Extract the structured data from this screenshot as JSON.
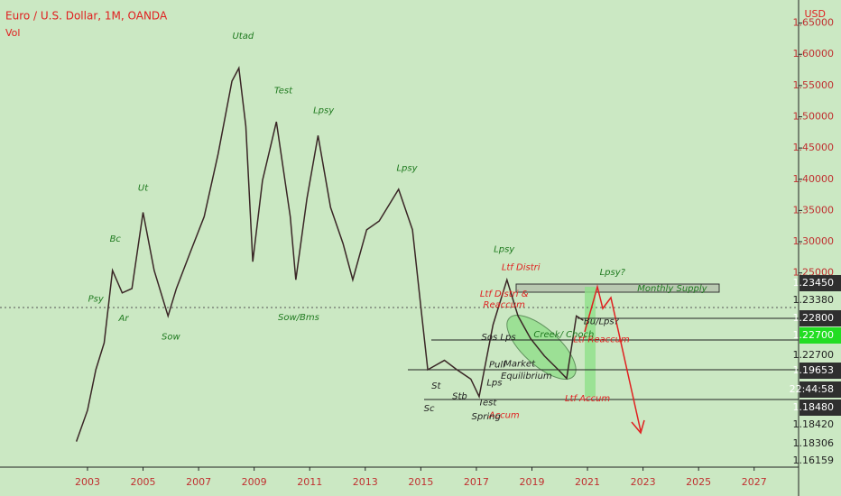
{
  "chart_data": {
    "type": "line",
    "title": "Euro / U.S. Dollar, 1M, OANDA",
    "subtitle": "Vol",
    "y_axis_label": "USD",
    "series": [
      {
        "name": "EURUSD",
        "color": "#3a2626",
        "x": [
          2002.6,
          2003.0,
          2003.3,
          2003.6,
          2003.9,
          2004.25,
          2004.6,
          2005.0,
          2005.4,
          2005.9,
          2006.2,
          2006.7,
          2007.2,
          2007.7,
          2008.2,
          2008.45,
          2008.7,
          2008.95,
          2009.3,
          2009.8,
          2010.3,
          2010.5,
          2010.9,
          2011.3,
          2011.75,
          2012.2,
          2012.55,
          2013.05,
          2013.5,
          2014.2,
          2014.7,
          2015.0,
          2015.25,
          2015.85,
          2016.3,
          2016.8,
          2017.1,
          2017.6,
          2018.1,
          2018.5,
          2018.95,
          2019.45,
          2019.95,
          2020.25,
          2020.6,
          2020.85
        ],
        "values": [
          0.98,
          1.03,
          1.095,
          1.138,
          1.254,
          1.218,
          1.225,
          1.347,
          1.254,
          1.181,
          1.225,
          1.283,
          1.34,
          1.44,
          1.557,
          1.578,
          1.485,
          1.268,
          1.398,
          1.492,
          1.34,
          1.239,
          1.369,
          1.47,
          1.355,
          1.297,
          1.239,
          1.319,
          1.333,
          1.384,
          1.319,
          1.196,
          1.095,
          1.11,
          1.095,
          1.08,
          1.052,
          1.167,
          1.239,
          1.181,
          1.145,
          1.117,
          1.095,
          1.081,
          1.181,
          1.174
        ]
      }
    ],
    "xlim": [
      1999.85,
      2028.6
    ],
    "xticks": [
      2003,
      2005,
      2007,
      2009,
      2011,
      2013,
      2015,
      2017,
      2019,
      2021,
      2023,
      2025,
      2027
    ],
    "ylim": [
      0.939,
      1.687
    ],
    "yticks": [
      {
        "value": 1.65,
        "label": "1.65000"
      },
      {
        "value": 1.6,
        "label": "1.60000"
      },
      {
        "value": 1.55,
        "label": "1.55000"
      },
      {
        "value": 1.5,
        "label": "1.50000"
      },
      {
        "value": 1.45,
        "label": "1.45000"
      },
      {
        "value": 1.4,
        "label": "1.40000"
      },
      {
        "value": 1.35,
        "label": "1.35000"
      },
      {
        "value": 1.3,
        "label": "1.30000"
      },
      {
        "value": 1.25,
        "label": "1.25000"
      }
    ],
    "price_tags": [
      {
        "label": "1.23450",
        "color": "#2f2f2f"
      },
      {
        "label": "1.23380",
        "color": null
      },
      {
        "label": "1.22800",
        "color": "#2f2f2f"
      },
      {
        "label": "1.22700",
        "color": "#22dd22"
      },
      {
        "label": "1.22700",
        "color": null
      },
      {
        "label": "1.19653",
        "color": "#2f2f2f"
      },
      {
        "label": "22:44:58",
        "color": "#2f2f2f"
      },
      {
        "label": "1.18480",
        "color": "#2f2f2f"
      },
      {
        "label": "1.18420",
        "color": null
      },
      {
        "label": "1.18306",
        "color": null
      },
      {
        "label": "1.16159",
        "color": null
      }
    ],
    "annotations": [
      {
        "text": "Utad",
        "x": 2008.6,
        "y": 1.629,
        "color": "#1f7a1f"
      },
      {
        "text": "Test",
        "x": 2010.05,
        "y": 1.542,
        "color": "#1f7a1f"
      },
      {
        "text": "Lpsy",
        "x": 2011.5,
        "y": 1.51,
        "color": "#1f7a1f"
      },
      {
        "text": "Lpsy",
        "x": 2014.5,
        "y": 1.418,
        "color": "#1f7a1f"
      },
      {
        "text": "Ut",
        "x": 2005.0,
        "y": 1.386,
        "color": "#1f7a1f"
      },
      {
        "text": "Bc",
        "x": 2004.0,
        "y": 1.304,
        "color": "#1f7a1f"
      },
      {
        "text": "Psy",
        "x": 2003.3,
        "y": 1.208,
        "color": "#1f7a1f"
      },
      {
        "text": "Ar",
        "x": 2004.3,
        "y": 1.177,
        "color": "#1f7a1f"
      },
      {
        "text": "Sow",
        "x": 2006.0,
        "y": 1.148,
        "color": "#1f7a1f"
      },
      {
        "text": "Sow/Bms",
        "x": 2010.6,
        "y": 1.179,
        "color": "#1f7a1f"
      },
      {
        "text": "Lpsy",
        "x": 2018.0,
        "y": 1.288,
        "color": "#1f7a1f"
      },
      {
        "text": "Lpsy?",
        "x": 2021.9,
        "y": 1.251,
        "color": "#1f7a1f"
      },
      {
        "text": "Monthly Supply",
        "x": 2024.05,
        "y": 1.225,
        "color": "#1f7a1f"
      },
      {
        "text": "Ltf Distri",
        "x": 2018.6,
        "y": 1.259,
        "color": "#e02020"
      },
      {
        "text": "Ltf Distri &",
        "x": 2018.0,
        "y": 1.216,
        "color": "#e02020"
      },
      {
        "text": "Reaccum",
        "x": 2018.0,
        "y": 1.199,
        "color": "#e02020"
      },
      {
        "text": "Ltf Reaccum",
        "x": 2021.5,
        "y": 1.143,
        "color": "#e02020"
      },
      {
        "text": "Ltf Accum",
        "x": 2021.0,
        "y": 1.049,
        "color": "#e02020"
      },
      {
        "text": "Accum",
        "x": 2018.0,
        "y": 1.022,
        "color": "#e02020"
      },
      {
        "text": "St",
        "x": 2015.55,
        "y": 1.069,
        "color": "#222"
      },
      {
        "text": "Sc",
        "x": 2015.3,
        "y": 1.033,
        "color": "#222"
      },
      {
        "text": "Stb",
        "x": 2016.4,
        "y": 1.052,
        "color": "#222"
      },
      {
        "text": "Test",
        "x": 2017.4,
        "y": 1.042,
        "color": "#222"
      },
      {
        "text": "Spring",
        "x": 2017.35,
        "y": 1.02,
        "color": "#222"
      },
      {
        "text": "Lps",
        "x": 2017.65,
        "y": 1.074,
        "color": "#222"
      },
      {
        "text": "Sos Lps",
        "x": 2017.8,
        "y": 1.147,
        "color": "#222"
      },
      {
        "text": "Pull",
        "x": 2017.75,
        "y": 1.103,
        "color": "#222"
      },
      {
        "text": "Market",
        "x": 2018.55,
        "y": 1.104,
        "color": "#222"
      },
      {
        "text": "Equilibrium",
        "x": 2018.8,
        "y": 1.085,
        "color": "#222"
      },
      {
        "text": "Creek/ Choch",
        "x": 2020.15,
        "y": 1.151,
        "color": "#1f7a1f"
      },
      {
        "text": "Bu/Lps?",
        "x": 2021.5,
        "y": 1.172,
        "color": "#222"
      }
    ]
  }
}
